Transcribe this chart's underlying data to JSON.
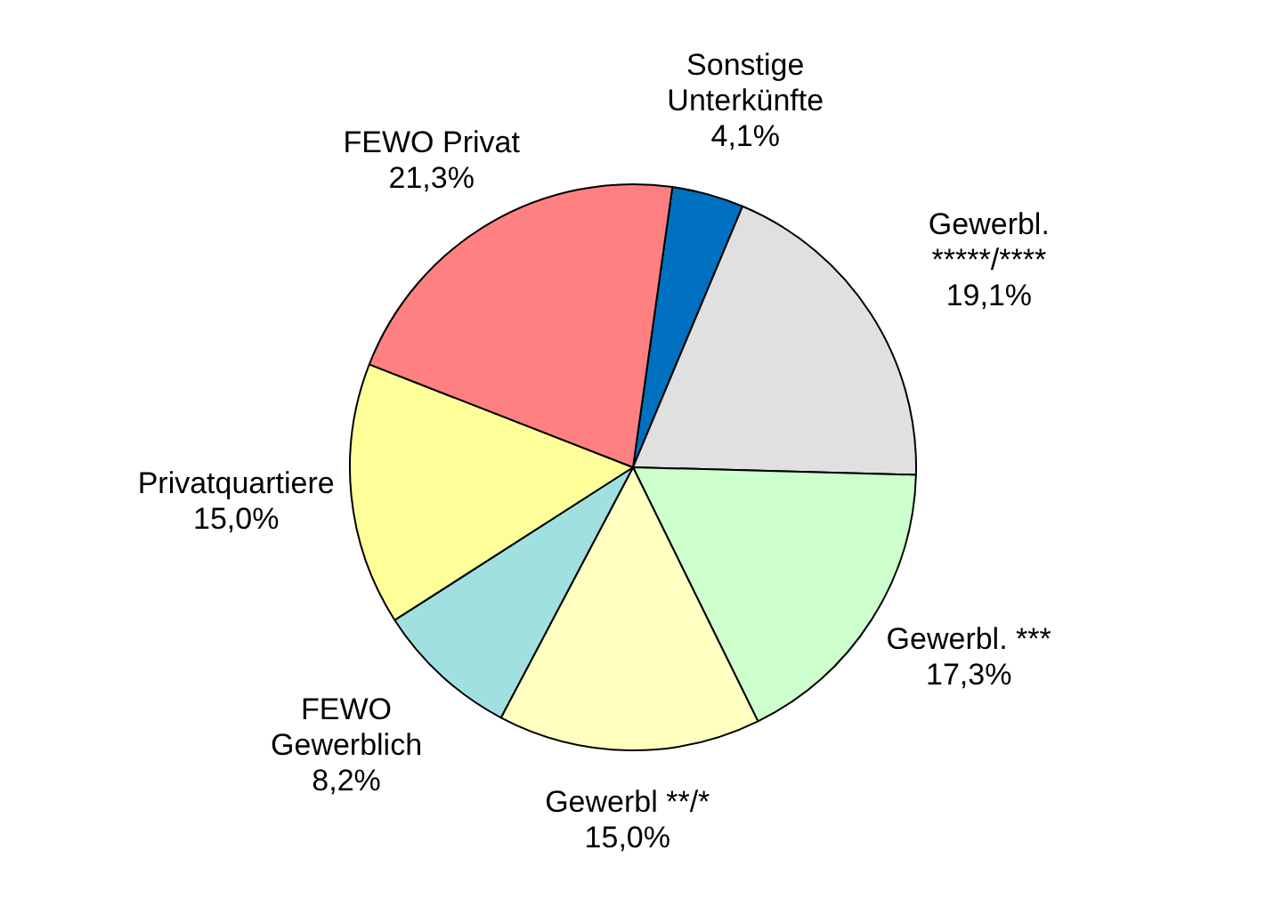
{
  "chart_data": {
    "type": "pie",
    "categories": [
      "Sonstige\nUnterkünfte",
      "Gewerbl.\n*****/****",
      "Gewerbl. ***",
      "Gewerbl **/*",
      "FEWO\nGewerblich",
      "Privatquartiere",
      "FEWO Privat"
    ],
    "values": [
      4.1,
      19.1,
      17.3,
      15.0,
      8.2,
      15.0,
      21.3
    ],
    "value_labels": [
      "4,1%",
      "19,1%",
      "17,3%",
      "15,0%",
      "8,2%",
      "15,0%",
      "21,3%"
    ],
    "colors": [
      "#0070c0",
      "#e0e0e0",
      "#ccffcc",
      "#ffffc0",
      "#a0e0e0",
      "#ffff99",
      "#ff8080"
    ],
    "legend": false
  }
}
